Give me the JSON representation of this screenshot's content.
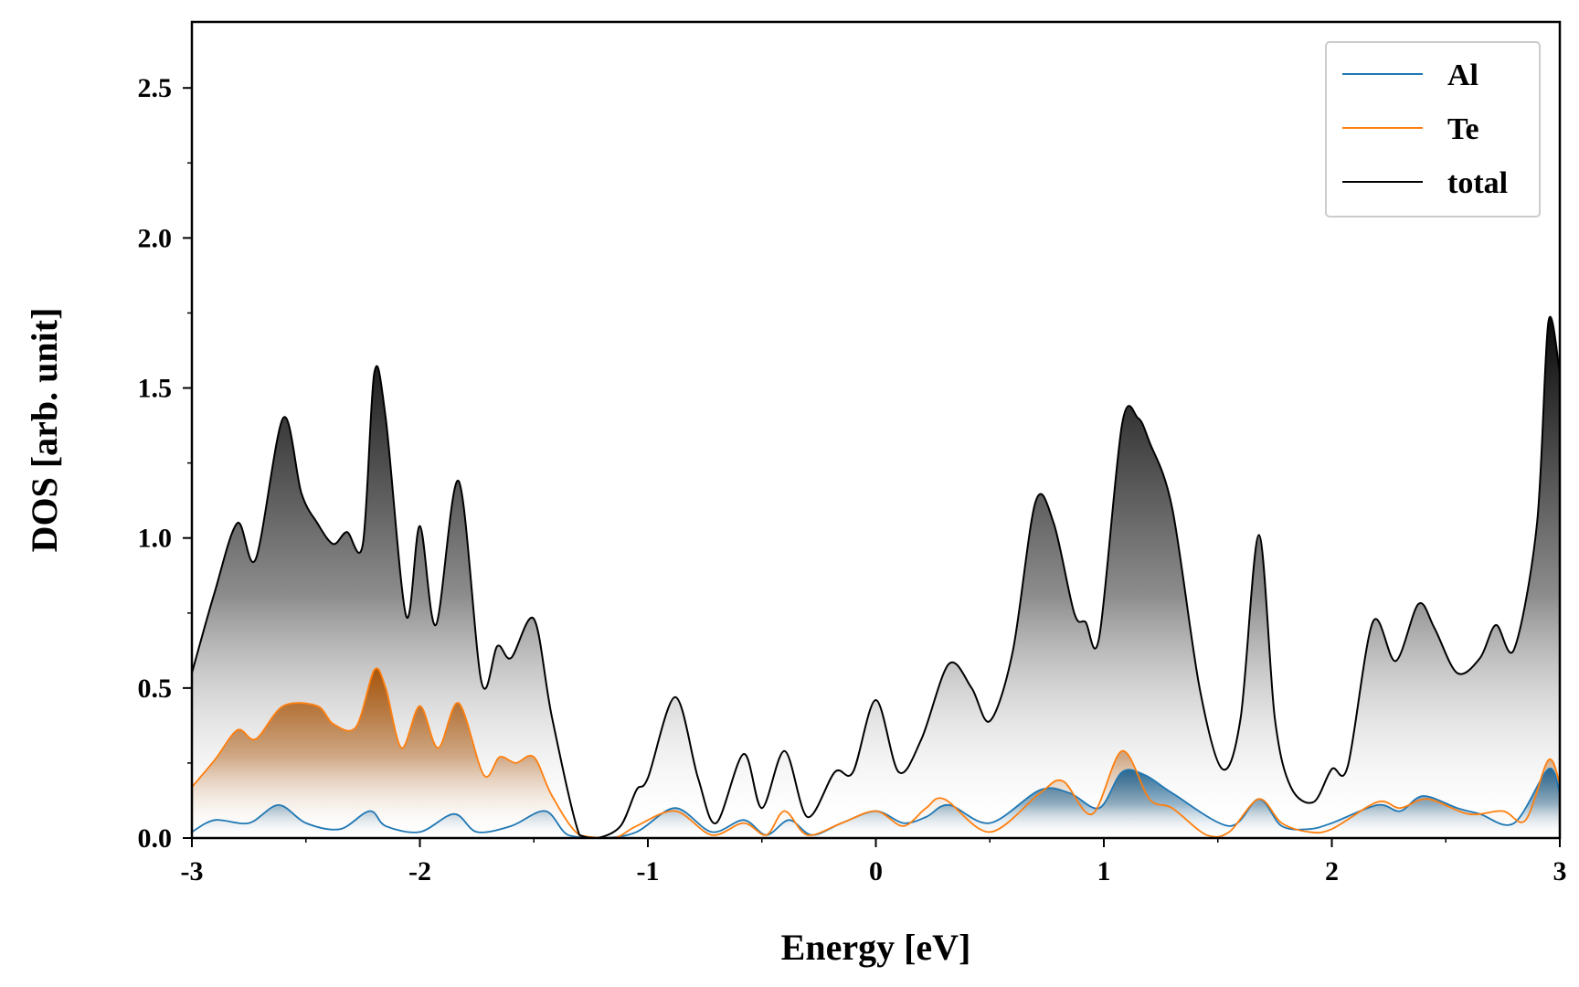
{
  "chart_data": {
    "type": "area",
    "title": "",
    "xlabel": "Energy [eV]",
    "ylabel": "DOS [arb. unit]",
    "xlim": [
      -3,
      3
    ],
    "ylim": [
      0,
      2.72
    ],
    "xticks": [
      "-3",
      "-2",
      "-1",
      "0",
      "1",
      "2",
      "3"
    ],
    "yticks": [
      "0.0",
      "0.5",
      "1.0",
      "1.5",
      "2.0",
      "2.5"
    ],
    "grid": false,
    "legend_position": "top-right",
    "series": [
      {
        "name": "Al",
        "color": "#1f77b4",
        "points": [
          [
            -3.0,
            0.02
          ],
          [
            -2.9,
            0.06
          ],
          [
            -2.75,
            0.05
          ],
          [
            -2.62,
            0.11
          ],
          [
            -2.5,
            0.05
          ],
          [
            -2.35,
            0.03
          ],
          [
            -2.22,
            0.09
          ],
          [
            -2.15,
            0.04
          ],
          [
            -2.0,
            0.02
          ],
          [
            -1.85,
            0.08
          ],
          [
            -1.75,
            0.02
          ],
          [
            -1.6,
            0.04
          ],
          [
            -1.45,
            0.09
          ],
          [
            -1.35,
            0.01
          ],
          [
            -1.2,
            0.0
          ],
          [
            -1.05,
            0.02
          ],
          [
            -0.88,
            0.1
          ],
          [
            -0.72,
            0.02
          ],
          [
            -0.58,
            0.06
          ],
          [
            -0.48,
            0.01
          ],
          [
            -0.38,
            0.06
          ],
          [
            -0.28,
            0.01
          ],
          [
            -0.15,
            0.05
          ],
          [
            0.0,
            0.09
          ],
          [
            0.12,
            0.05
          ],
          [
            0.22,
            0.07
          ],
          [
            0.32,
            0.11
          ],
          [
            0.5,
            0.05
          ],
          [
            0.72,
            0.16
          ],
          [
            0.85,
            0.15
          ],
          [
            0.98,
            0.1
          ],
          [
            1.08,
            0.22
          ],
          [
            1.18,
            0.21
          ],
          [
            1.3,
            0.15
          ],
          [
            1.55,
            0.04
          ],
          [
            1.68,
            0.13
          ],
          [
            1.78,
            0.04
          ],
          [
            1.9,
            0.03
          ],
          [
            2.0,
            0.05
          ],
          [
            2.2,
            0.11
          ],
          [
            2.3,
            0.09
          ],
          [
            2.4,
            0.14
          ],
          [
            2.55,
            0.1
          ],
          [
            2.65,
            0.08
          ],
          [
            2.8,
            0.05
          ],
          [
            2.95,
            0.23
          ],
          [
            3.0,
            0.15
          ]
        ]
      },
      {
        "name": "Te",
        "color": "#ff7f0e",
        "points": [
          [
            -3.0,
            0.17
          ],
          [
            -2.9,
            0.26
          ],
          [
            -2.8,
            0.36
          ],
          [
            -2.72,
            0.33
          ],
          [
            -2.6,
            0.44
          ],
          [
            -2.45,
            0.44
          ],
          [
            -2.38,
            0.38
          ],
          [
            -2.28,
            0.37
          ],
          [
            -2.2,
            0.56
          ],
          [
            -2.15,
            0.5
          ],
          [
            -2.08,
            0.3
          ],
          [
            -2.0,
            0.44
          ],
          [
            -1.92,
            0.3
          ],
          [
            -1.83,
            0.45
          ],
          [
            -1.72,
            0.21
          ],
          [
            -1.65,
            0.27
          ],
          [
            -1.58,
            0.25
          ],
          [
            -1.5,
            0.27
          ],
          [
            -1.42,
            0.14
          ],
          [
            -1.3,
            0.01
          ],
          [
            -1.15,
            0.0
          ],
          [
            -1.05,
            0.04
          ],
          [
            -0.88,
            0.09
          ],
          [
            -0.72,
            0.01
          ],
          [
            -0.58,
            0.05
          ],
          [
            -0.48,
            0.01
          ],
          [
            -0.4,
            0.09
          ],
          [
            -0.3,
            0.01
          ],
          [
            -0.15,
            0.05
          ],
          [
            0.0,
            0.09
          ],
          [
            0.12,
            0.04
          ],
          [
            0.22,
            0.1
          ],
          [
            0.3,
            0.13
          ],
          [
            0.5,
            0.02
          ],
          [
            0.72,
            0.15
          ],
          [
            0.82,
            0.19
          ],
          [
            0.95,
            0.08
          ],
          [
            1.08,
            0.29
          ],
          [
            1.2,
            0.13
          ],
          [
            1.3,
            0.1
          ],
          [
            1.45,
            0.01
          ],
          [
            1.55,
            0.02
          ],
          [
            1.68,
            0.13
          ],
          [
            1.78,
            0.05
          ],
          [
            1.9,
            0.02
          ],
          [
            2.0,
            0.03
          ],
          [
            2.2,
            0.12
          ],
          [
            2.3,
            0.1
          ],
          [
            2.42,
            0.13
          ],
          [
            2.6,
            0.08
          ],
          [
            2.75,
            0.09
          ],
          [
            2.85,
            0.06
          ],
          [
            2.95,
            0.26
          ],
          [
            3.0,
            0.18
          ]
        ]
      },
      {
        "name": "total",
        "color": "#000000",
        "points": [
          [
            -3.0,
            0.55
          ],
          [
            -2.9,
            0.82
          ],
          [
            -2.8,
            1.05
          ],
          [
            -2.72,
            0.93
          ],
          [
            -2.6,
            1.4
          ],
          [
            -2.52,
            1.15
          ],
          [
            -2.45,
            1.05
          ],
          [
            -2.38,
            0.98
          ],
          [
            -2.32,
            1.02
          ],
          [
            -2.25,
            0.98
          ],
          [
            -2.2,
            1.55
          ],
          [
            -2.15,
            1.4
          ],
          [
            -2.06,
            0.74
          ],
          [
            -2.0,
            1.04
          ],
          [
            -1.93,
            0.71
          ],
          [
            -1.83,
            1.19
          ],
          [
            -1.73,
            0.52
          ],
          [
            -1.66,
            0.64
          ],
          [
            -1.6,
            0.6
          ],
          [
            -1.5,
            0.73
          ],
          [
            -1.42,
            0.4
          ],
          [
            -1.3,
            0.01
          ],
          [
            -1.22,
            0.0
          ],
          [
            -1.12,
            0.04
          ],
          [
            -1.05,
            0.16
          ],
          [
            -1.0,
            0.2
          ],
          [
            -0.88,
            0.47
          ],
          [
            -0.78,
            0.2
          ],
          [
            -0.7,
            0.05
          ],
          [
            -0.58,
            0.28
          ],
          [
            -0.5,
            0.1
          ],
          [
            -0.4,
            0.29
          ],
          [
            -0.3,
            0.07
          ],
          [
            -0.18,
            0.22
          ],
          [
            -0.1,
            0.22
          ],
          [
            0.0,
            0.46
          ],
          [
            0.1,
            0.22
          ],
          [
            0.2,
            0.33
          ],
          [
            0.32,
            0.58
          ],
          [
            0.42,
            0.5
          ],
          [
            0.5,
            0.39
          ],
          [
            0.6,
            0.62
          ],
          [
            0.7,
            1.12
          ],
          [
            0.78,
            1.05
          ],
          [
            0.87,
            0.75
          ],
          [
            0.92,
            0.72
          ],
          [
            0.98,
            0.67
          ],
          [
            1.08,
            1.38
          ],
          [
            1.15,
            1.4
          ],
          [
            1.2,
            1.32
          ],
          [
            1.3,
            1.1
          ],
          [
            1.42,
            0.5
          ],
          [
            1.52,
            0.23
          ],
          [
            1.6,
            0.4
          ],
          [
            1.68,
            1.01
          ],
          [
            1.75,
            0.4
          ],
          [
            1.82,
            0.17
          ],
          [
            1.92,
            0.12
          ],
          [
            2.0,
            0.23
          ],
          [
            2.07,
            0.24
          ],
          [
            2.18,
            0.72
          ],
          [
            2.28,
            0.59
          ],
          [
            2.38,
            0.78
          ],
          [
            2.45,
            0.7
          ],
          [
            2.55,
            0.55
          ],
          [
            2.65,
            0.6
          ],
          [
            2.72,
            0.71
          ],
          [
            2.8,
            0.63
          ],
          [
            2.9,
            1.05
          ],
          [
            2.95,
            1.72
          ],
          [
            3.0,
            1.55
          ]
        ]
      }
    ]
  }
}
